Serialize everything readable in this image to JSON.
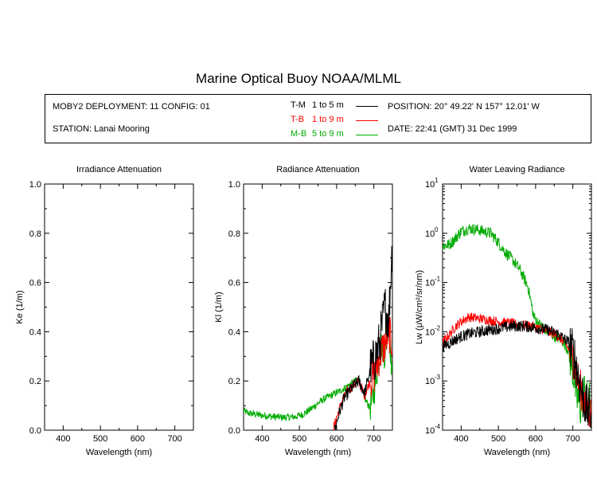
{
  "title": "Marine Optical Buoy NOAA/MLML",
  "info": {
    "deployment": "MOBY2 DEPLOYMENT: 11 CONFIG: 01",
    "station": "STATION: Lanai Mooring",
    "position": "POSITION: 20° 49.22' N   157° 12.01' W",
    "date": "DATE: 22:41 (GMT) 31 Dec 1999",
    "legend": [
      {
        "code": "T-M",
        "range": "1 to 5  m",
        "color": "#000000"
      },
      {
        "code": "T-B",
        "range": "1 to 9  m",
        "color": "#ff0000"
      },
      {
        "code": "M-B",
        "range": "5 to 9  m",
        "color": "#00aa00"
      }
    ]
  },
  "chart_data": [
    {
      "type": "line",
      "title": "Irradiance Attenuation",
      "xlabel": "Wavelength (nm)",
      "ylabel": "Ke  (1/m)",
      "xlim": [
        350,
        750
      ],
      "ylim": [
        0,
        1
      ],
      "xticks": [
        "400",
        "500",
        "600",
        "700"
      ],
      "yticks": [
        "0.0",
        "0.2",
        "0.4",
        "0.6",
        "0.8",
        "1.0"
      ],
      "series": []
    },
    {
      "type": "line",
      "title": "Radiance Attenuation",
      "xlabel": "Wavelength (nm)",
      "ylabel": "Kl  (1/m)",
      "xlim": [
        350,
        750
      ],
      "ylim": [
        0,
        1
      ],
      "xticks": [
        "400",
        "500",
        "600",
        "700"
      ],
      "yticks": [
        "0.0",
        "0.2",
        "0.4",
        "0.6",
        "0.8",
        "1.0"
      ],
      "series": [
        {
          "color": "#00aa00",
          "noise": 0.015,
          "points": [
            [
              350,
              0.08
            ],
            [
              360,
              0.07
            ],
            [
              380,
              0.065
            ],
            [
              400,
              0.06
            ],
            [
              430,
              0.055
            ],
            [
              460,
              0.052
            ],
            [
              490,
              0.055
            ],
            [
              510,
              0.065
            ],
            [
              530,
              0.085
            ],
            [
              550,
              0.11
            ],
            [
              570,
              0.13
            ],
            [
              590,
              0.145
            ],
            [
              610,
              0.16
            ],
            [
              630,
              0.18
            ],
            [
              650,
              0.2
            ],
            [
              660,
              0.21
            ],
            [
              675,
              0.13
            ],
            [
              690,
              0.09
            ],
            [
              700,
              0.15
            ],
            [
              710,
              0.25
            ],
            [
              720,
              0.35
            ],
            [
              730,
              0.3
            ],
            [
              740,
              0.45
            ],
            [
              750,
              0.2
            ]
          ]
        },
        {
          "color": "#ff0000",
          "noise": 0.02,
          "points": [
            [
              590,
              0.0
            ],
            [
              600,
              0.05
            ],
            [
              615,
              0.12
            ],
            [
              630,
              0.16
            ],
            [
              650,
              0.19
            ],
            [
              660,
              0.2
            ],
            [
              670,
              0.16
            ],
            [
              675,
              0.14
            ],
            [
              690,
              0.2
            ],
            [
              700,
              0.22
            ],
            [
              715,
              0.3
            ],
            [
              730,
              0.35
            ],
            [
              740,
              0.4
            ],
            [
              750,
              0.35
            ]
          ]
        },
        {
          "color": "#000000",
          "noise": 0.025,
          "points": [
            [
              595,
              0.0
            ],
            [
              605,
              0.06
            ],
            [
              620,
              0.13
            ],
            [
              640,
              0.17
            ],
            [
              660,
              0.2
            ],
            [
              675,
              0.15
            ],
            [
              690,
              0.24
            ],
            [
              700,
              0.28
            ],
            [
              715,
              0.35
            ],
            [
              730,
              0.5
            ],
            [
              740,
              0.45
            ],
            [
              750,
              0.77
            ]
          ]
        }
      ]
    },
    {
      "type": "line",
      "title": "Water Leaving Radiance",
      "xlabel": "Wavelength (nm)",
      "ylabel": "Lw  (μW/cm²/sr/nm)",
      "xlim": [
        350,
        750
      ],
      "ylim": [
        0.0001,
        10
      ],
      "yscale": "log",
      "xticks": [
        "400",
        "500",
        "600",
        "700"
      ],
      "yticks": [
        "10",
        "10",
        "10",
        "10",
        "10",
        "10"
      ],
      "ytick_exponents": [
        "-4",
        "-3",
        "-2",
        "-1",
        "0",
        "1"
      ],
      "series": [
        {
          "color": "#00aa00",
          "noise": 0.12,
          "points": [
            [
              350,
              0.55
            ],
            [
              370,
              0.6
            ],
            [
              385,
              0.8
            ],
            [
              400,
              1.1
            ],
            [
              420,
              1.25
            ],
            [
              440,
              1.2
            ],
            [
              460,
              1.1
            ],
            [
              480,
              1.0
            ],
            [
              500,
              0.65
            ],
            [
              520,
              0.4
            ],
            [
              540,
              0.28
            ],
            [
              560,
              0.17
            ],
            [
              580,
              0.08
            ],
            [
              595,
              0.02
            ],
            [
              610,
              0.014
            ],
            [
              640,
              0.009
            ],
            [
              670,
              0.007
            ],
            [
              690,
              0.004
            ],
            [
              700,
              0.002
            ],
            [
              710,
              0.0005
            ],
            [
              720,
              0.0003
            ],
            [
              730,
              0.0006
            ],
            [
              740,
              0.0003
            ],
            [
              750,
              0.0004
            ]
          ]
        },
        {
          "color": "#ff0000",
          "noise": 0.1,
          "points": [
            [
              350,
              0.006
            ],
            [
              370,
              0.009
            ],
            [
              385,
              0.013
            ],
            [
              400,
              0.016
            ],
            [
              420,
              0.02
            ],
            [
              440,
              0.019
            ],
            [
              460,
              0.018
            ],
            [
              480,
              0.017
            ],
            [
              500,
              0.016
            ],
            [
              530,
              0.015
            ],
            [
              560,
              0.014
            ],
            [
              590,
              0.013
            ],
            [
              620,
              0.011
            ],
            [
              650,
              0.009
            ],
            [
              680,
              0.006
            ],
            [
              700,
              0.003
            ],
            [
              715,
              0.001
            ],
            [
              730,
              0.0004
            ],
            [
              750,
              0.0002
            ]
          ]
        },
        {
          "color": "#000000",
          "noise": 0.12,
          "points": [
            [
              350,
              0.005
            ],
            [
              370,
              0.006
            ],
            [
              385,
              0.007
            ],
            [
              400,
              0.008
            ],
            [
              420,
              0.009
            ],
            [
              450,
              0.01
            ],
            [
              480,
              0.011
            ],
            [
              510,
              0.012
            ],
            [
              540,
              0.013
            ],
            [
              570,
              0.013
            ],
            [
              600,
              0.012
            ],
            [
              630,
              0.011
            ],
            [
              660,
              0.009
            ],
            [
              690,
              0.006
            ],
            [
              705,
              0.003
            ],
            [
              720,
              0.0008
            ],
            [
              735,
              0.0003
            ],
            [
              750,
              0.0002
            ]
          ]
        }
      ]
    }
  ]
}
